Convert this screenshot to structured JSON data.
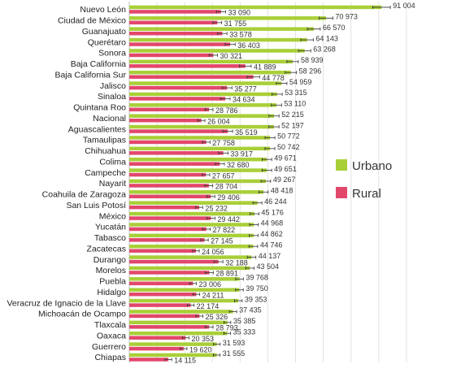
{
  "chart_data": {
    "type": "bar",
    "orientation": "horizontal",
    "title": "",
    "xlabel": "",
    "ylabel": "",
    "xlim": [
      0,
      100000
    ],
    "grid": "vertical-lines",
    "legend_position": "right-middle",
    "categories": [
      "Nuevo León",
      "Ciudad de México",
      "Guanajuato",
      "Querétaro",
      "Sonora",
      "Baja California",
      "Baja California Sur",
      "Jalisco",
      "Sinaloa",
      "Quintana Roo",
      "Nacional",
      "Aguascalientes",
      "Tamaulipas",
      "Chihuahua",
      "Colima",
      "Campeche",
      "Nayarit",
      "Coahuila de Zaragoza",
      "San Luis Potosí",
      "México",
      "Yucatán",
      "Tabasco",
      "Zacatecas",
      "Durango",
      "Morelos",
      "Puebla",
      "Hidalgo",
      "Veracruz de Ignacio de la Llave",
      "Michoacán de Ocampo",
      "Tlaxcala",
      "Oaxaca",
      "Guerrero",
      "Chiapas"
    ],
    "series": [
      {
        "name": "Urbano",
        "color": "#a9cf38",
        "values": [
          91004,
          70973,
          66570,
          64143,
          63268,
          58939,
          58296,
          54959,
          53315,
          53110,
          52215,
          52197,
          50772,
          50742,
          49671,
          49651,
          49267,
          48418,
          46244,
          45176,
          44968,
          44862,
          44746,
          44137,
          43504,
          39768,
          39750,
          39353,
          37435,
          35385,
          35333,
          31593,
          31555
        ],
        "labels": [
          "91 004",
          "70 973",
          "66 570",
          "64 143",
          "63 268",
          "58 939",
          "58 296",
          "54 959",
          "53 315",
          "53 110",
          "52 215",
          "52 197",
          "50 772",
          "50 742",
          "49 671",
          "49 651",
          "49 267",
          "48 418",
          "46 244",
          "45 176",
          "44 968",
          "44 862",
          "44 746",
          "44 137",
          "43 504",
          "39 768",
          "39 750",
          "39 353",
          "37 435",
          "35 385",
          "35 333",
          "31 593",
          "31 555"
        ]
      },
      {
        "name": "Rural",
        "color": "#e2476c",
        "values": [
          33090,
          31755,
          33578,
          36403,
          30321,
          41889,
          44778,
          35277,
          34634,
          28786,
          26004,
          35519,
          27758,
          33917,
          32680,
          27657,
          28704,
          29406,
          25232,
          29442,
          27822,
          27145,
          24056,
          32188,
          28891,
          23006,
          24211,
          22174,
          25326,
          28793,
          20353,
          19620,
          14115
        ],
        "labels": [
          "33 090",
          "31 755",
          "33 578",
          "36 403",
          "30 321",
          "41 889",
          "44 778",
          "35 277",
          "34 634",
          "28 786",
          "26 004",
          "35 519",
          "27 758",
          "33 917",
          "32 680",
          "27 657",
          "28 704",
          "29 406",
          "25 232",
          "29 442",
          "27 822",
          "27 145",
          "24 056",
          "32 188",
          "28 891",
          "23 006",
          "24 211",
          "22 174",
          "25 326",
          "28 793",
          "20 353",
          "19 620",
          "14 115"
        ]
      }
    ]
  }
}
